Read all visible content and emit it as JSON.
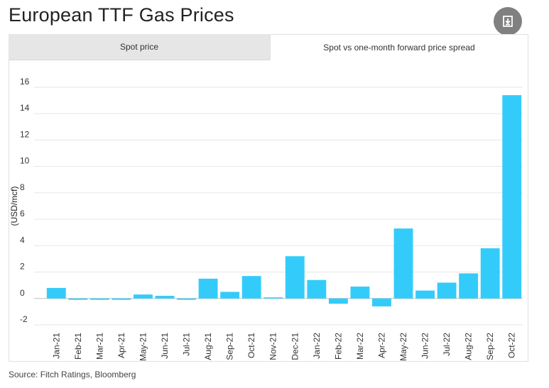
{
  "header": {
    "title": "European TTF Gas Prices",
    "download_icon": "download-icon"
  },
  "tabs": [
    {
      "label": "Spot price",
      "active": false
    },
    {
      "label": "Spot vs one-month forward price spread",
      "active": true
    }
  ],
  "source": "Source: Fitch Ratings, Bloomberg",
  "colors": {
    "bar": "#33ccfa",
    "grid": "#e6e6e6",
    "zero_line": "#bdbdbd"
  },
  "chart_data": {
    "type": "bar",
    "ylabel": "(USD/mcf)",
    "xlabel": "",
    "ylim": [
      -2,
      16
    ],
    "yticks": [
      -2,
      0,
      2,
      4,
      6,
      8,
      10,
      12,
      14,
      16
    ],
    "grid": true,
    "categories": [
      "Jan-21",
      "Feb-21",
      "Mar-21",
      "Apr-21",
      "May-21",
      "Jun-21",
      "Jul-21",
      "Aug-21",
      "Sep-21",
      "Oct-21",
      "Nov-21",
      "Dec-21",
      "Jan-22",
      "Feb-22",
      "Mar-22",
      "Apr-22",
      "May-22",
      "Jun-22",
      "Jul-22",
      "Aug-22",
      "Sep-22",
      "Oct-22"
    ],
    "values": [
      0.8,
      -0.1,
      -0.1,
      -0.1,
      0.3,
      0.2,
      -0.1,
      1.5,
      0.5,
      1.7,
      0.05,
      3.2,
      1.4,
      -0.4,
      0.9,
      -0.6,
      5.3,
      0.6,
      1.2,
      1.9,
      3.8,
      15.4
    ]
  }
}
